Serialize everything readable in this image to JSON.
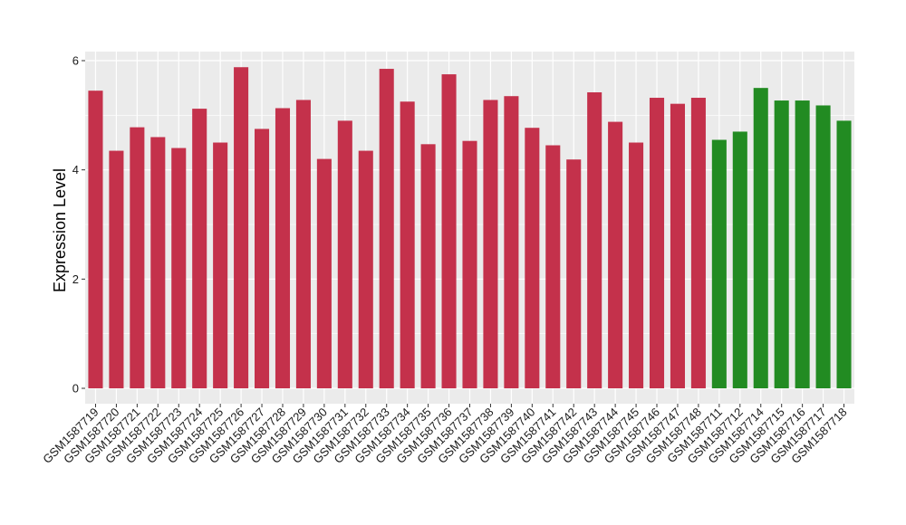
{
  "chart_data": {
    "type": "bar",
    "title": "",
    "xlabel": "",
    "ylabel": "Expression Level",
    "ylim": [
      0,
      6.1
    ],
    "yticks": [
      0,
      2,
      4,
      6
    ],
    "grid": true,
    "legend": "none",
    "categories": [
      "GSM1587719",
      "GSM1587720",
      "GSM1587721",
      "GSM1587722",
      "GSM1587723",
      "GSM1587724",
      "GSM1587725",
      "GSM1587726",
      "GSM1587727",
      "GSM1587728",
      "GSM1587729",
      "GSM1587730",
      "GSM1587731",
      "GSM1587732",
      "GSM1587733",
      "GSM1587734",
      "GSM1587735",
      "GSM1587736",
      "GSM1587737",
      "GSM1587738",
      "GSM1587739",
      "GSM1587740",
      "GSM1587741",
      "GSM1587742",
      "GSM1587743",
      "GSM1587744",
      "GSM1587745",
      "GSM1587746",
      "GSM1587747",
      "GSM1587748",
      "GSM1587711",
      "GSM1587712",
      "GSM1587714",
      "GSM1587715",
      "GSM1587716",
      "GSM1587717",
      "GSM1587718"
    ],
    "values": [
      5.45,
      4.35,
      4.78,
      4.6,
      4.4,
      5.12,
      4.5,
      5.88,
      4.75,
      5.13,
      5.28,
      4.2,
      4.9,
      4.35,
      5.85,
      5.25,
      4.47,
      5.75,
      4.53,
      5.28,
      5.35,
      4.77,
      4.45,
      4.19,
      5.42,
      4.88,
      4.5,
      5.32,
      5.21,
      5.32,
      4.55,
      4.7,
      5.5,
      5.27,
      5.27,
      5.18,
      4.9
    ],
    "bar_colors": [
      "#C4314B",
      "#C4314B",
      "#C4314B",
      "#C4314B",
      "#C4314B",
      "#C4314B",
      "#C4314B",
      "#C4314B",
      "#C4314B",
      "#C4314B",
      "#C4314B",
      "#C4314B",
      "#C4314B",
      "#C4314B",
      "#C4314B",
      "#C4314B",
      "#C4314B",
      "#C4314B",
      "#C4314B",
      "#C4314B",
      "#C4314B",
      "#C4314B",
      "#C4314B",
      "#C4314B",
      "#C4314B",
      "#C4314B",
      "#C4314B",
      "#C4314B",
      "#C4314B",
      "#C4314B",
      "#228B22",
      "#228B22",
      "#228B22",
      "#228B22",
      "#228B22",
      "#228B22",
      "#228B22"
    ],
    "colors": {
      "panel_background": "#EBEBEB",
      "gridline": "#FFFFFF",
      "group_1": "#C4314B",
      "group_2": "#228B22"
    }
  }
}
